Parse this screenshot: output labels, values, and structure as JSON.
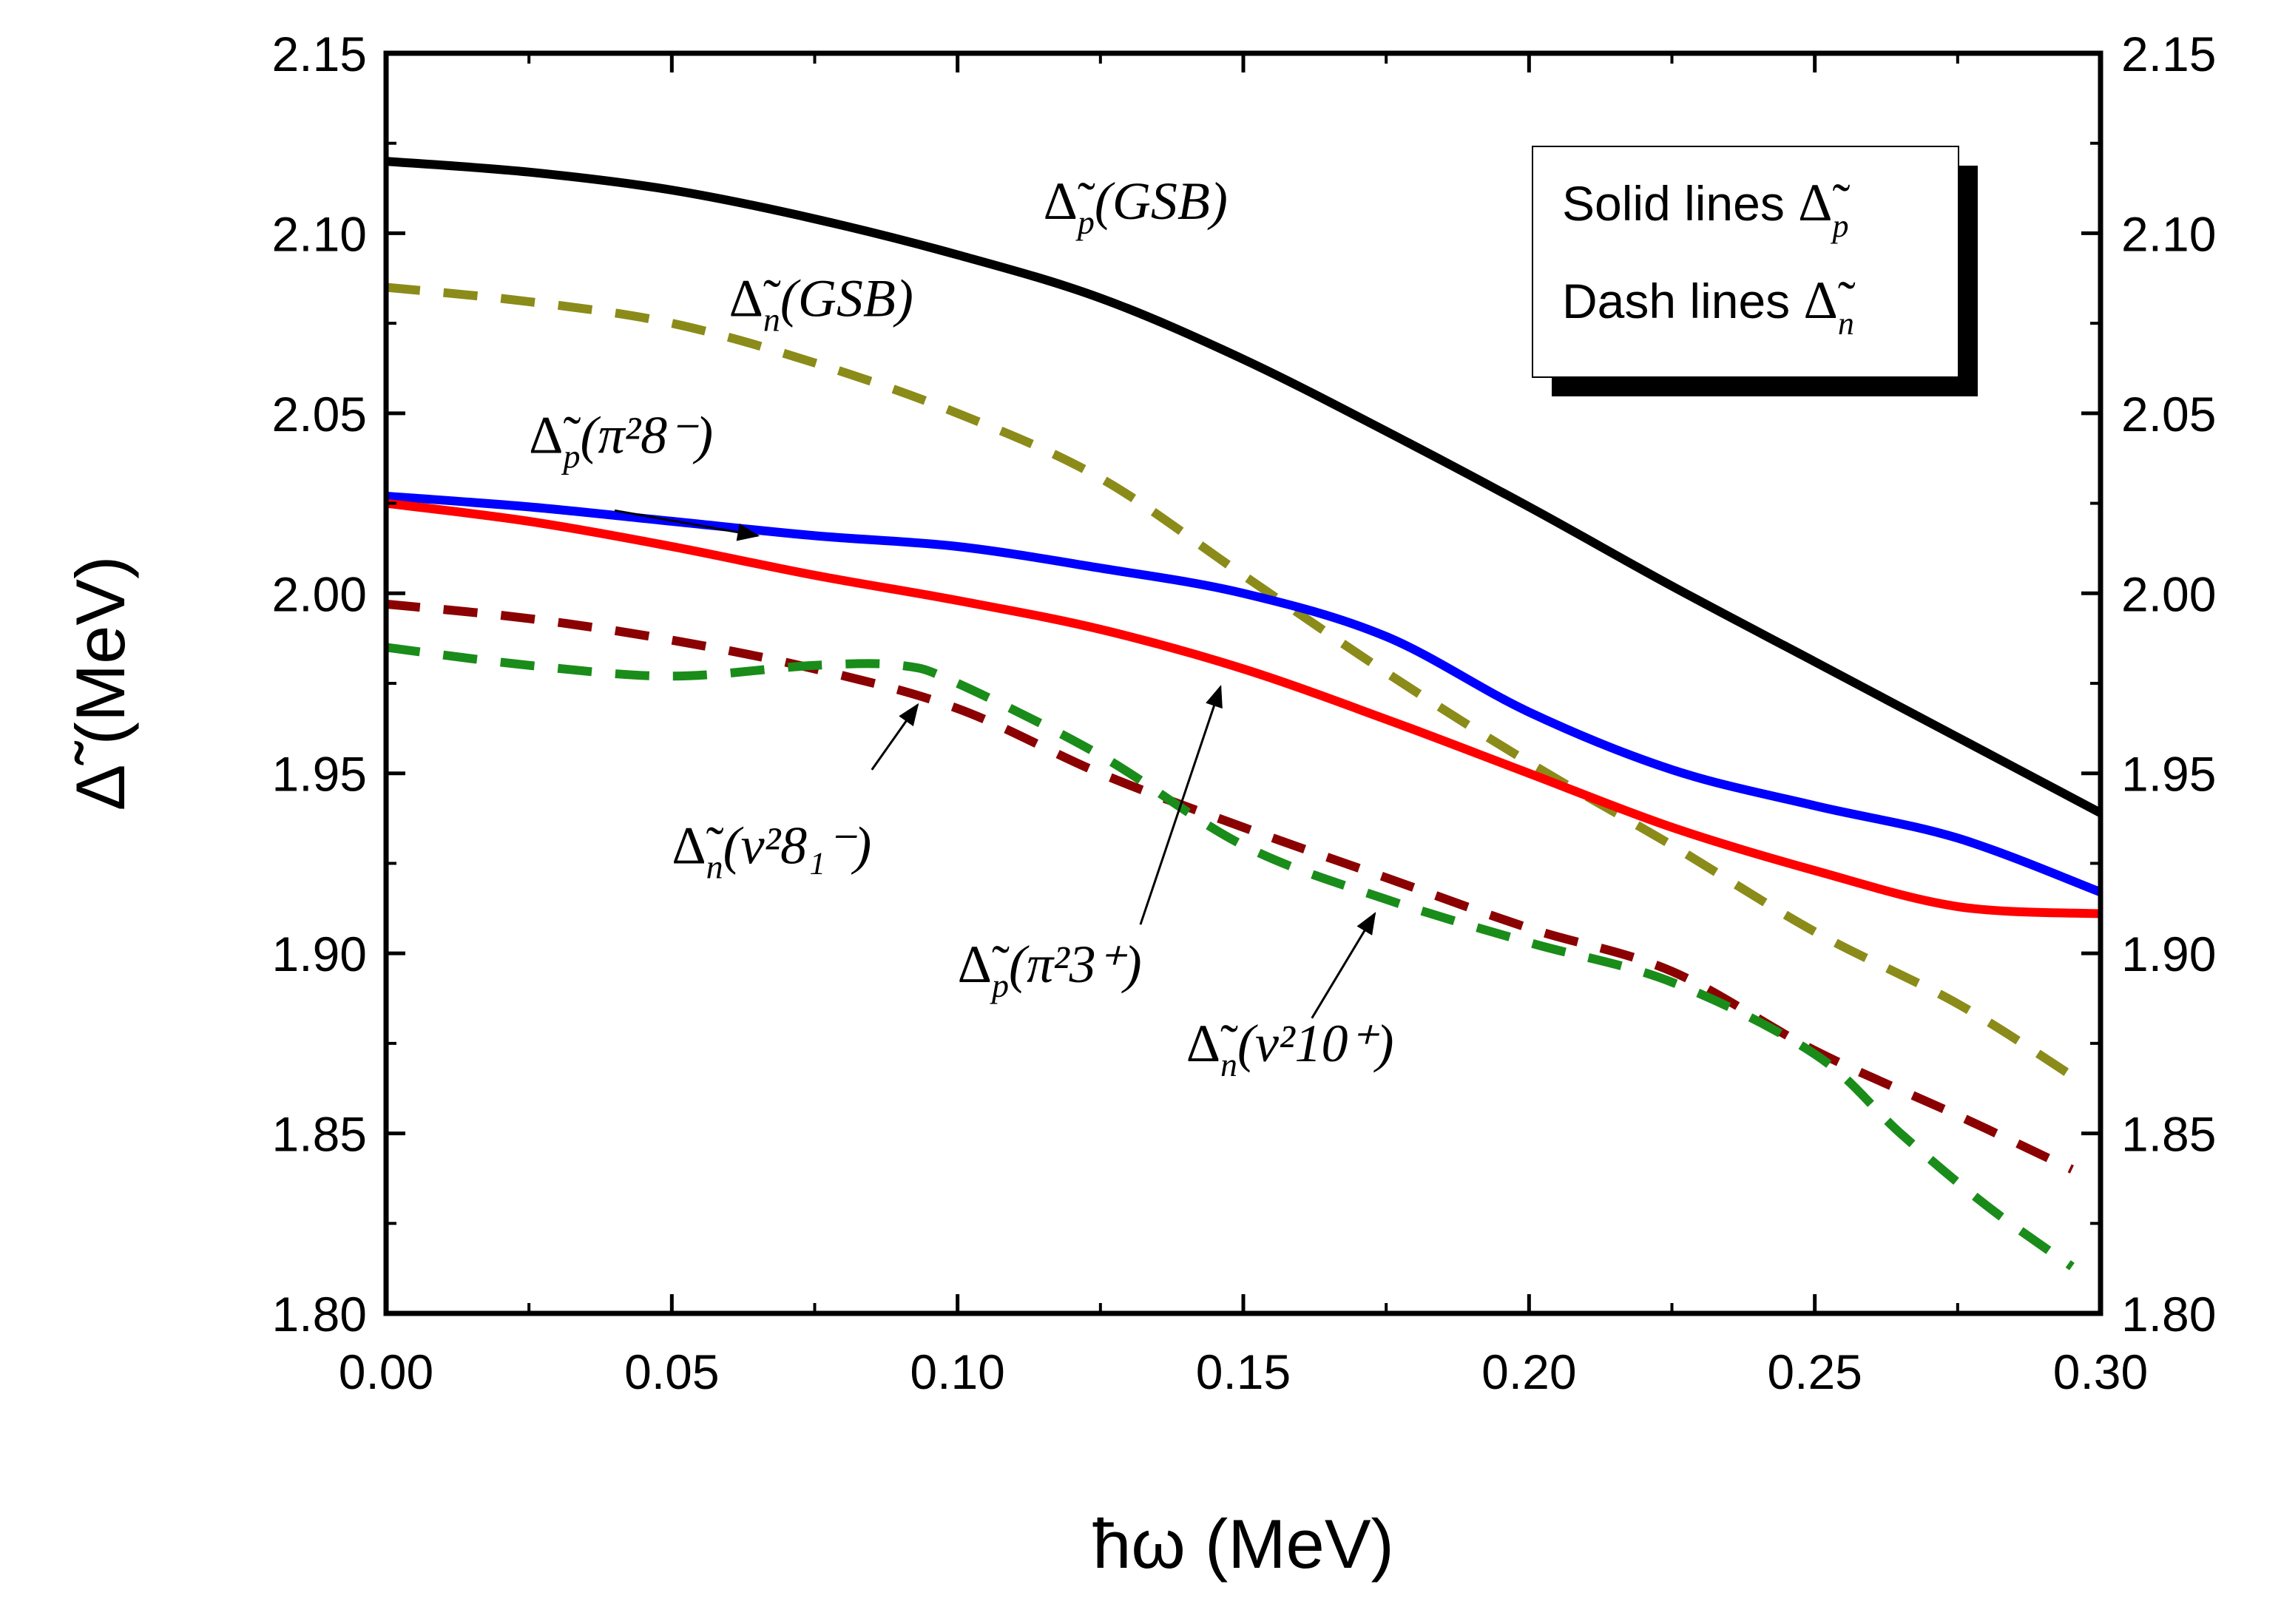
{
  "chart_data": {
    "type": "line",
    "xlabel": "ħω (MeV)",
    "ylabel": "Δ̃ (MeV)",
    "xlim": [
      0.0,
      0.3
    ],
    "ylim": [
      1.8,
      2.15
    ],
    "x_ticks": [
      "0.00",
      "0.05",
      "0.10",
      "0.15",
      "0.20",
      "0.25",
      "0.30"
    ],
    "y_ticks": [
      "1.80",
      "1.85",
      "1.90",
      "1.95",
      "2.00",
      "2.05",
      "2.10",
      "2.15"
    ],
    "grid": false,
    "legend": {
      "position": "top-right",
      "solid_label": "Solid lines",
      "solid_symbol": "p",
      "dash_label": "Dash lines",
      "dash_symbol": "n"
    },
    "series": [
      {
        "name": "Δ̃p(GSB)",
        "style": "solid",
        "color": "#000000",
        "points": [
          [
            0.0,
            2.12
          ],
          [
            0.025,
            2.117
          ],
          [
            0.05,
            2.112
          ],
          [
            0.075,
            2.104
          ],
          [
            0.1,
            2.094
          ],
          [
            0.125,
            2.082
          ],
          [
            0.15,
            2.065
          ],
          [
            0.175,
            2.045
          ],
          [
            0.2,
            2.024
          ],
          [
            0.225,
            2.002
          ],
          [
            0.25,
            1.981
          ],
          [
            0.275,
            1.96
          ],
          [
            0.3,
            1.939
          ]
        ]
      },
      {
        "name": "Δ̃n(GSB)",
        "style": "dashed",
        "color": "#8b8b1a",
        "points": [
          [
            0.0,
            2.085
          ],
          [
            0.025,
            2.081
          ],
          [
            0.05,
            2.075
          ],
          [
            0.075,
            2.064
          ],
          [
            0.1,
            2.05
          ],
          [
            0.125,
            2.032
          ],
          [
            0.15,
            2.005
          ],
          [
            0.175,
            1.978
          ],
          [
            0.2,
            1.953
          ],
          [
            0.225,
            1.93
          ],
          [
            0.25,
            1.906
          ],
          [
            0.275,
            1.886
          ],
          [
            0.295,
            1.866
          ]
        ]
      },
      {
        "name": "Δ̃p(π²8⁻)",
        "style": "solid",
        "color": "#0000ff",
        "points": [
          [
            0.0,
            2.027
          ],
          [
            0.025,
            2.024
          ],
          [
            0.05,
            2.02
          ],
          [
            0.075,
            2.016
          ],
          [
            0.1,
            2.013
          ],
          [
            0.125,
            2.007
          ],
          [
            0.15,
            2.0
          ],
          [
            0.175,
            1.988
          ],
          [
            0.2,
            1.967
          ],
          [
            0.225,
            1.951
          ],
          [
            0.25,
            1.941
          ],
          [
            0.275,
            1.932
          ],
          [
            0.3,
            1.917
          ]
        ]
      },
      {
        "name": "Δ̃p(π²3⁺)",
        "style": "solid",
        "color": "#ff0000",
        "points": [
          [
            0.0,
            2.025
          ],
          [
            0.025,
            2.02
          ],
          [
            0.05,
            2.013
          ],
          [
            0.075,
            2.005
          ],
          [
            0.1,
            1.998
          ],
          [
            0.125,
            1.99
          ],
          [
            0.15,
            1.979
          ],
          [
            0.175,
            1.965
          ],
          [
            0.2,
            1.95
          ],
          [
            0.225,
            1.935
          ],
          [
            0.25,
            1.923
          ],
          [
            0.275,
            1.913
          ],
          [
            0.3,
            1.911
          ]
        ]
      },
      {
        "name": "Δ̃n(ν²8₁⁻)",
        "style": "dashed",
        "color": "#8b0000",
        "points": [
          [
            0.0,
            1.997
          ],
          [
            0.025,
            1.993
          ],
          [
            0.05,
            1.987
          ],
          [
            0.075,
            1.979
          ],
          [
            0.1,
            1.968
          ],
          [
            0.125,
            1.95
          ],
          [
            0.15,
            1.935
          ],
          [
            0.175,
            1.921
          ],
          [
            0.2,
            1.907
          ],
          [
            0.225,
            1.895
          ],
          [
            0.25,
            1.873
          ],
          [
            0.275,
            1.855
          ],
          [
            0.295,
            1.84
          ]
        ]
      },
      {
        "name": "Δ̃n(ν²10⁺)",
        "style": "dashed",
        "color": "#1a8c1a",
        "points": [
          [
            0.0,
            1.985
          ],
          [
            0.025,
            1.98
          ],
          [
            0.05,
            1.977
          ],
          [
            0.075,
            1.98
          ],
          [
            0.09,
            1.98
          ],
          [
            0.1,
            1.975
          ],
          [
            0.125,
            1.955
          ],
          [
            0.15,
            1.93
          ],
          [
            0.175,
            1.915
          ],
          [
            0.2,
            1.903
          ],
          [
            0.225,
            1.892
          ],
          [
            0.25,
            1.872
          ],
          [
            0.265,
            1.85
          ],
          [
            0.28,
            1.83
          ],
          [
            0.295,
            1.813
          ]
        ]
      }
    ],
    "annotations": [
      {
        "base": "Δ̃",
        "sub": "p",
        "tail": "(GSB)",
        "sup": "",
        "at": [
          0.115,
          2.104
        ],
        "arrow": null
      },
      {
        "base": "Δ̃",
        "sub": "n",
        "tail": "(GSB)",
        "sup": "",
        "at": [
          0.06,
          2.077
        ],
        "arrow": null
      },
      {
        "base": "Δ̃",
        "sub": "p",
        "tail": "(π²8⁻)",
        "sup": "",
        "at": [
          0.025,
          2.039
        ],
        "arrow": [
          0.04,
          2.023,
          0.065,
          2.016
        ]
      },
      {
        "base": "Δ̃",
        "sub": "n",
        "tail": "(ν²8₁⁻)",
        "sup": "",
        "at": [
          0.05,
          1.925
        ],
        "arrow": [
          0.085,
          1.951,
          0.093,
          1.969
        ]
      },
      {
        "base": "Δ̃",
        "sub": "p",
        "tail": "(π²3⁺)",
        "sup": "",
        "at": [
          0.1,
          1.892
        ],
        "arrow": [
          0.132,
          1.908,
          0.146,
          1.974
        ]
      },
      {
        "base": "Δ̃",
        "sub": "n",
        "tail": "(ν²10⁺)",
        "sup": "",
        "at": [
          0.14,
          1.87
        ],
        "arrow": [
          0.162,
          1.882,
          0.173,
          1.911
        ]
      }
    ]
  }
}
